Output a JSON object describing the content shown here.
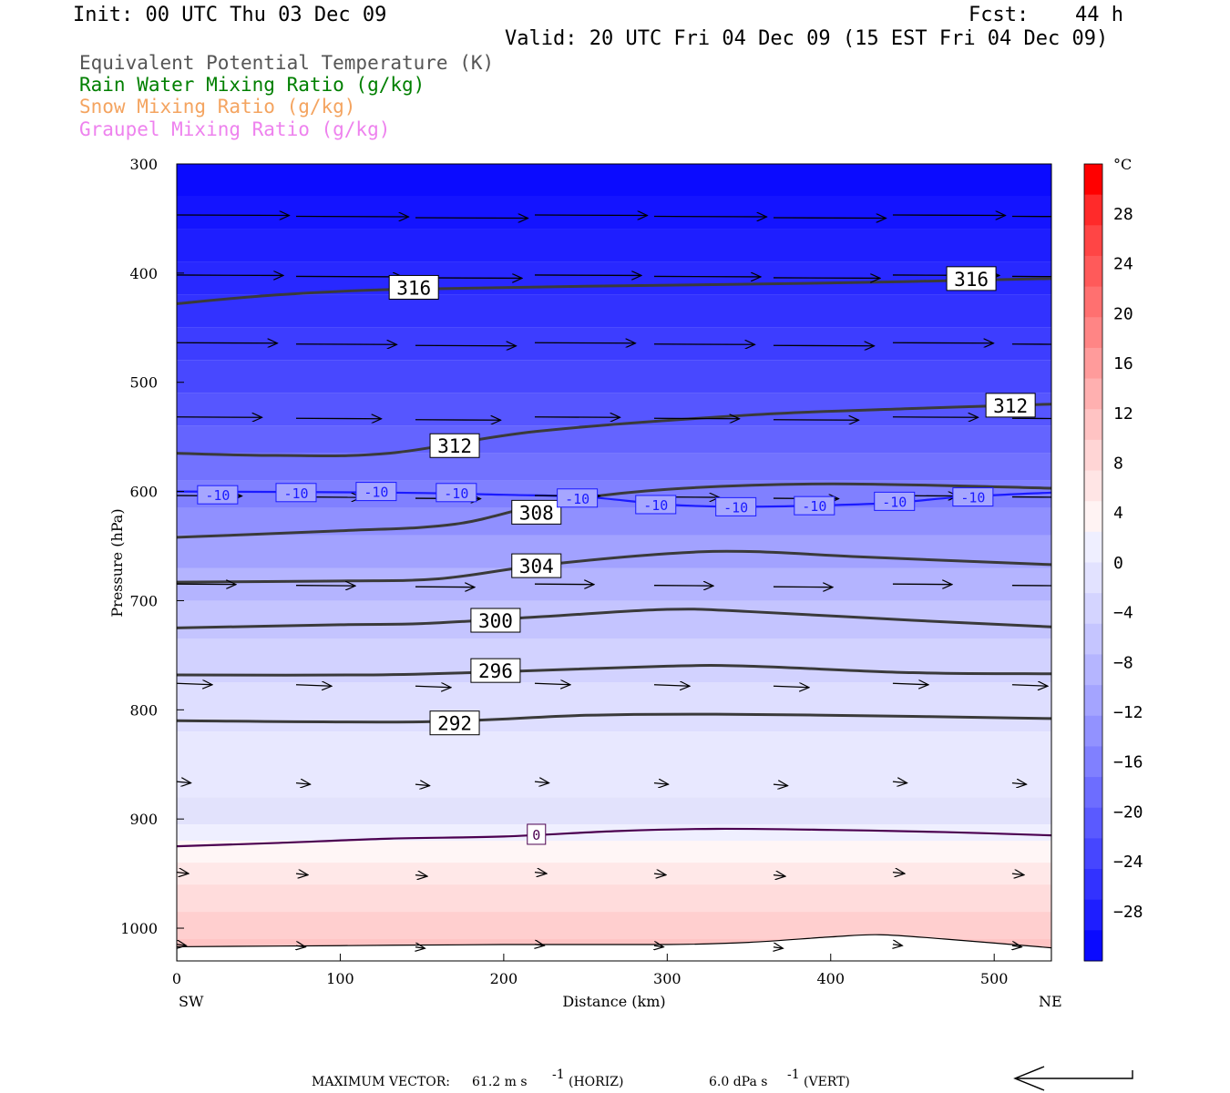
{
  "header": {
    "init": "Init: 00 UTC Thu 03 Dec 09",
    "fcst_label": "Fcst:",
    "fcst_value": "44 h",
    "valid": "Valid: 20 UTC Fri 04 Dec 09 (15 EST Fri 04 Dec 09)"
  },
  "legend": {
    "items": [
      {
        "label": "Equivalent Potential Temperature (K)",
        "color": "#555555"
      },
      {
        "label": "Rain Water Mixing Ratio (g/kg)",
        "color": "#007f00"
      },
      {
        "label": "Snow Mixing Ratio (g/kg)",
        "color": "#f4a460"
      },
      {
        "label": "Graupel Mixing Ratio (g/kg)",
        "color": "#ee82ee"
      }
    ]
  },
  "axes": {
    "ylabel": "Pressure (hPa)",
    "xlabel": "Distance (km)",
    "x_left_end": "SW",
    "x_right_end": "NE",
    "colorbar_unit": "°C"
  },
  "footer": {
    "max_vector_label": "MAXIMUM VECTOR:",
    "horiz_value": "61.2 m s",
    "horiz_exp": "-1",
    "horiz_tag": "(HORIZ)",
    "vert_value": "6.0 dPa s",
    "vert_exp": "-1",
    "vert_tag": "(VERT)"
  },
  "chart_data": {
    "type": "cross-section",
    "x": {
      "label": "Distance (km)",
      "range": [
        0,
        535
      ],
      "ticks": [
        0,
        100,
        200,
        300,
        400,
        500
      ]
    },
    "y": {
      "label": "Pressure (hPa)",
      "range": [
        1030,
        300
      ],
      "ticks": [
        300,
        400,
        500,
        600,
        700,
        800,
        900,
        1000
      ]
    },
    "colorbar": {
      "unit": "°C",
      "ticks": [
        28,
        24,
        20,
        16,
        12,
        8,
        4,
        0,
        -4,
        -8,
        -12,
        -16,
        -20,
        -24,
        -28
      ],
      "colors": [
        "#ff0000",
        "#ff2a2a",
        "#ff4545",
        "#ff5a5a",
        "#ff7070",
        "#ff8585",
        "#ff9b9b",
        "#ffb0b0",
        "#ffc3c3",
        "#ffd5d5",
        "#ffe5e5",
        "#fff3f3",
        "#efefff",
        "#e2e2ff",
        "#d4d4ff",
        "#c5c5ff",
        "#b5b5ff",
        "#a4a4ff",
        "#9292ff",
        "#8080ff",
        "#6d6dff",
        "#5a5aff",
        "#4646ff",
        "#3232ff",
        "#1e1eff",
        "#0a0aff"
      ]
    },
    "theta_e_contours": [
      {
        "label": "316",
        "points": [
          [
            0,
            428
          ],
          [
            60,
            420
          ],
          [
            130,
            415
          ],
          [
            250,
            412
          ],
          [
            400,
            409
          ],
          [
            535,
            405
          ]
        ]
      },
      {
        "label": "312",
        "points": [
          [
            0,
            565
          ],
          [
            60,
            567
          ],
          [
            130,
            565
          ],
          [
            220,
            545
          ],
          [
            350,
            530
          ],
          [
            450,
            524
          ],
          [
            535,
            520
          ]
        ]
      },
      {
        "label": "308",
        "points": [
          [
            0,
            642
          ],
          [
            100,
            636
          ],
          [
            170,
            630
          ],
          [
            230,
            610
          ],
          [
            300,
            598
          ],
          [
            400,
            593
          ],
          [
            535,
            597
          ]
        ]
      },
      {
        "label": "304",
        "points": [
          [
            0,
            683
          ],
          [
            100,
            682
          ],
          [
            160,
            680
          ],
          [
            220,
            668
          ],
          [
            300,
            657
          ],
          [
            350,
            655
          ],
          [
            420,
            660
          ],
          [
            535,
            667
          ]
        ]
      },
      {
        "label": "300",
        "points": [
          [
            0,
            725
          ],
          [
            100,
            722
          ],
          [
            150,
            721
          ],
          [
            220,
            715
          ],
          [
            300,
            708
          ],
          [
            350,
            710
          ],
          [
            450,
            718
          ],
          [
            535,
            724
          ]
        ]
      },
      {
        "label": "296",
        "points": [
          [
            0,
            768
          ],
          [
            120,
            768
          ],
          [
            200,
            765
          ],
          [
            300,
            760
          ],
          [
            350,
            760
          ],
          [
            450,
            766
          ],
          [
            535,
            767
          ]
        ]
      },
      {
        "label": "292",
        "points": [
          [
            0,
            810
          ],
          [
            150,
            811
          ],
          [
            250,
            805
          ],
          [
            330,
            804
          ],
          [
            450,
            806
          ],
          [
            535,
            808
          ]
        ]
      }
    ],
    "temperature_contours": [
      {
        "label": "-10",
        "points": [
          [
            0,
            600
          ],
          [
            130,
            601
          ],
          [
            200,
            603
          ],
          [
            250,
            605
          ],
          [
            300,
            612
          ],
          [
            350,
            614
          ],
          [
            430,
            611
          ],
          [
            480,
            605
          ],
          [
            535,
            601
          ]
        ]
      },
      {
        "label": "0",
        "points": [
          [
            0,
            925
          ],
          [
            60,
            922
          ],
          [
            130,
            918
          ],
          [
            200,
            916
          ],
          [
            270,
            911
          ],
          [
            330,
            909
          ],
          [
            400,
            910
          ],
          [
            470,
            912
          ],
          [
            535,
            915
          ]
        ]
      }
    ],
    "wind_rows": [
      {
        "p": 348,
        "u": 0.95
      },
      {
        "p": 403,
        "u": 0.9
      },
      {
        "p": 465,
        "u": 0.85
      },
      {
        "p": 533,
        "u": 0.72
      },
      {
        "p": 605,
        "u": 0.55
      },
      {
        "p": 686,
        "u": 0.5
      },
      {
        "p": 777,
        "u": 0.3
      },
      {
        "p": 867,
        "u": 0.12
      },
      {
        "p": 950,
        "u": 0.1
      },
      {
        "p": 1016,
        "u": 0.08
      }
    ],
    "max_vector": {
      "horiz": 61.2,
      "horiz_unit": "m s-1",
      "vert": 6.0,
      "vert_unit": "dPa s-1"
    }
  }
}
